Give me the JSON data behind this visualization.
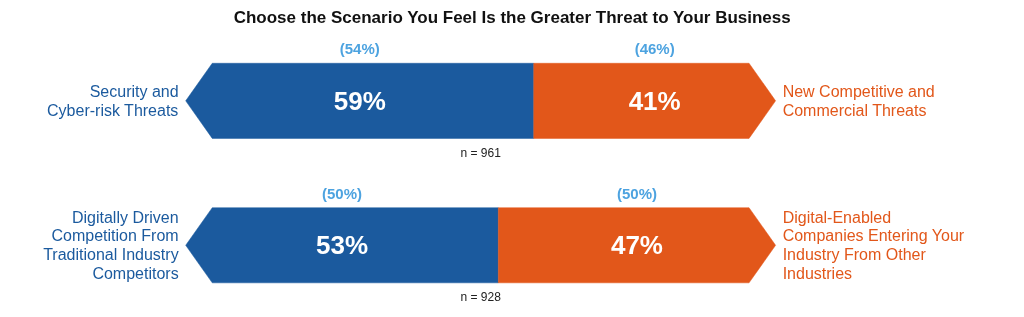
{
  "chart_data": {
    "type": "bar",
    "orientation": "horizontal",
    "stacked": true,
    "title": "Choose the Scenario You Feel Is the Greater Threat to Your Business",
    "categories": [
      "Security and\nCyber-risk Threats",
      "Digitally Driven\nCompetition From\nTraditional Industry\nCompetitors"
    ],
    "series": [
      {
        "color": "#1b5a9e",
        "values": [
          59,
          53
        ],
        "value_labels": [
          "59%",
          "53%"
        ]
      },
      {
        "color": "#e2571a",
        "values": [
          41,
          47
        ],
        "value_labels": [
          "41%",
          "47%"
        ]
      }
    ],
    "xlim": [
      0,
      100
    ],
    "tick_labels": false,
    "grid": false,
    "annotations": [
      "(54%)",
      "(46%)",
      "(50%)",
      "(50%)",
      "n = 961",
      "n = 928",
      {
        "text": "New Competitive and\nCommercial Threats",
        "x": 100,
        "y": "Security and\nCyber-risk Threats"
      },
      {
        "text": "Digital-Enabled\nCompanies Entering Your\nIndustry From Other\nIndustries",
        "x": 100,
        "y": "Digitally Driven\nCompetition From\nTraditional Industry\nCompetitors"
      }
    ]
  }
}
